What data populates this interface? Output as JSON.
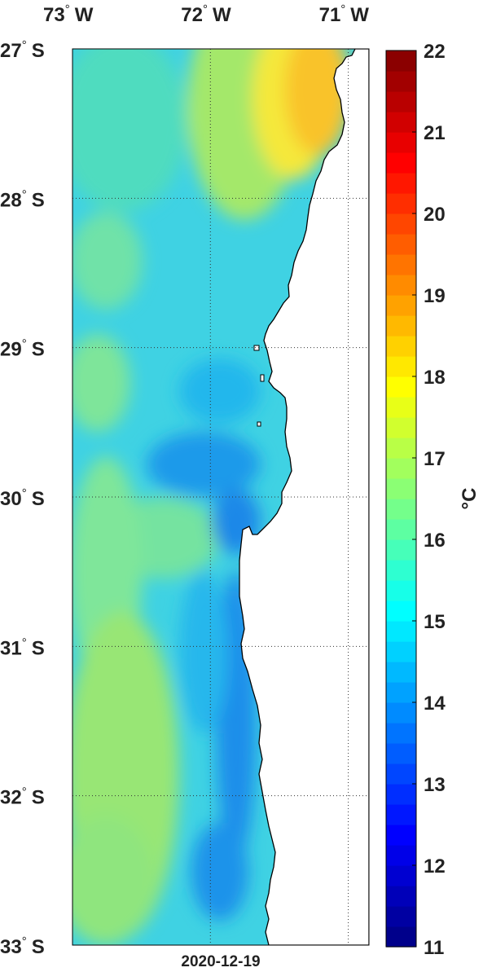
{
  "map": {
    "lon_labels": [
      {
        "deg": "73",
        "hemi": "W",
        "value": -73
      },
      {
        "deg": "72",
        "hemi": "W",
        "value": -72
      },
      {
        "deg": "71",
        "hemi": "W",
        "value": -71
      }
    ],
    "lat_labels": [
      {
        "deg": "27",
        "hemi": "S",
        "value": -27
      },
      {
        "deg": "28",
        "hemi": "S",
        "value": -28
      },
      {
        "deg": "29",
        "hemi": "S",
        "value": -29
      },
      {
        "deg": "30",
        "hemi": "S",
        "value": -30
      },
      {
        "deg": "31",
        "hemi": "S",
        "value": -31
      },
      {
        "deg": "32",
        "hemi": "S",
        "value": -32
      },
      {
        "deg": "33",
        "hemi": "S",
        "value": -33
      }
    ],
    "lon_range": [
      -73.0,
      -70.85
    ],
    "lat_range": [
      -33.0,
      -27.0
    ],
    "degree_symbol": "°",
    "date_label": "2020-12-19",
    "grid": "dotted",
    "land_color": "#ffffff",
    "coast_color": "#000000"
  },
  "colorbar": {
    "min": 11,
    "max": 22,
    "tick_labels": [
      "11",
      "12",
      "13",
      "14",
      "15",
      "16",
      "17",
      "18",
      "19",
      "20",
      "21",
      "22"
    ],
    "unit": "°C",
    "colormap": "jet",
    "steps": 44
  }
}
